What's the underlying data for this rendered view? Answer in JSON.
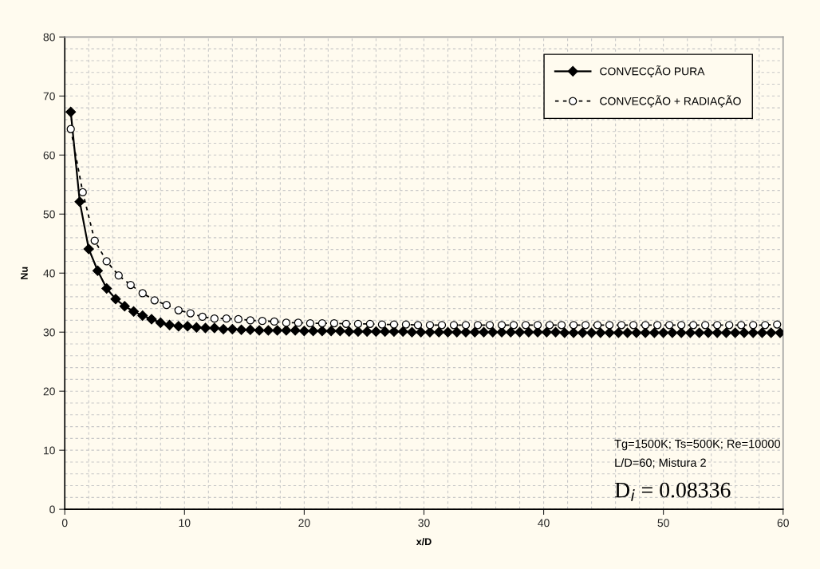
{
  "chart_data": {
    "type": "line",
    "xlabel": "x/D",
    "ylabel": "Nu",
    "xlim": [
      0,
      60
    ],
    "xticks": [
      0,
      10,
      20,
      30,
      40,
      50,
      60
    ],
    "ylim": [
      0,
      80
    ],
    "yticks": [
      0,
      10,
      20,
      30,
      40,
      50,
      60,
      70,
      80
    ],
    "grid": true,
    "legend": "top right",
    "series": [
      {
        "name": "CONVECÇÃO PURA",
        "color": "#000000",
        "marker": "diamond",
        "line_style": "solid",
        "x": [
          0.5,
          1.25,
          2.0,
          2.75,
          3.5,
          4.25,
          5.0,
          5.75,
          6.5,
          7.25,
          8.0,
          8.75,
          9.5,
          10.25,
          11.0,
          11.75,
          12.5,
          13.25,
          14.0,
          14.75,
          15.5,
          16.25,
          17.0,
          17.75,
          18.5,
          19.25,
          20.0,
          20.75,
          21.5,
          22.25,
          23.0,
          23.75,
          24.5,
          25.25,
          26.0,
          26.75,
          27.5,
          28.25,
          29.0,
          29.75,
          30.5,
          31.25,
          32.0,
          32.75,
          33.5,
          34.25,
          35.0,
          35.75,
          36.5,
          37.25,
          38.0,
          38.75,
          39.5,
          40.25,
          41.0,
          41.75,
          42.5,
          43.25,
          44.0,
          44.75,
          45.5,
          46.25,
          47.0,
          47.75,
          48.5,
          49.25,
          50.0,
          50.75,
          51.5,
          52.25,
          53.0,
          53.75,
          54.5,
          55.25,
          56.0,
          56.75,
          57.5,
          58.25,
          59.0,
          59.75
        ],
        "values": [
          67.3,
          52.1,
          44.1,
          40.4,
          37.4,
          35.6,
          34.4,
          33.5,
          32.8,
          32.2,
          31.6,
          31.2,
          31.0,
          31.0,
          30.8,
          30.7,
          30.7,
          30.5,
          30.5,
          30.4,
          30.4,
          30.3,
          30.3,
          30.3,
          30.3,
          30.3,
          30.2,
          30.2,
          30.2,
          30.2,
          30.2,
          30.1,
          30.1,
          30.1,
          30.1,
          30.1,
          30.1,
          30.1,
          30.0,
          30.0,
          30.0,
          30.0,
          30.0,
          30.0,
          30.0,
          30.0,
          30.0,
          30.0,
          30.0,
          30.0,
          30.0,
          30.0,
          30.0,
          30.0,
          30.0,
          29.9,
          29.9,
          29.9,
          29.9,
          29.9,
          29.9,
          29.9,
          29.9,
          29.9,
          29.9,
          29.9,
          29.9,
          29.9,
          29.9,
          29.9,
          29.9,
          29.9,
          29.9,
          29.9,
          29.9,
          29.9,
          29.9,
          29.9,
          29.9,
          29.9
        ]
      },
      {
        "name": "CONVECÇÃO + RADIAÇÃO",
        "color": "#000000",
        "marker": "circle",
        "line_style": "dashed",
        "x": [
          0.5,
          1.5,
          2.5,
          3.5,
          4.5,
          5.5,
          6.5,
          7.5,
          8.5,
          9.5,
          10.5,
          11.5,
          12.5,
          13.5,
          14.5,
          15.5,
          16.5,
          17.5,
          18.5,
          19.5,
          20.5,
          21.5,
          22.5,
          23.5,
          24.5,
          25.5,
          26.5,
          27.5,
          28.5,
          29.5,
          30.5,
          31.5,
          32.5,
          33.5,
          34.5,
          35.5,
          36.5,
          37.5,
          38.5,
          39.5,
          40.5,
          41.5,
          42.5,
          43.5,
          44.5,
          45.5,
          46.5,
          47.5,
          48.5,
          49.5,
          50.5,
          51.5,
          52.5,
          53.5,
          54.5,
          55.5,
          56.5,
          57.5,
          58.5,
          59.5
        ],
        "values": [
          64.4,
          53.7,
          45.5,
          42.0,
          39.6,
          38.0,
          36.6,
          35.4,
          34.6,
          33.7,
          33.2,
          32.6,
          32.3,
          32.3,
          32.2,
          32.0,
          31.9,
          31.8,
          31.6,
          31.6,
          31.5,
          31.5,
          31.5,
          31.4,
          31.4,
          31.4,
          31.3,
          31.3,
          31.3,
          31.2,
          31.2,
          31.2,
          31.2,
          31.2,
          31.2,
          31.2,
          31.2,
          31.2,
          31.2,
          31.2,
          31.2,
          31.2,
          31.2,
          31.2,
          31.2,
          31.2,
          31.2,
          31.2,
          31.2,
          31.2,
          31.2,
          31.2,
          31.2,
          31.2,
          31.2,
          31.2,
          31.2,
          31.2,
          31.2,
          31.3
        ]
      }
    ],
    "annotations": [
      "Tg=1500K; Ts=500K; Re=10000",
      "L/D=60; Mistura 2",
      "D$_{i}$ = 0.08336"
    ]
  }
}
